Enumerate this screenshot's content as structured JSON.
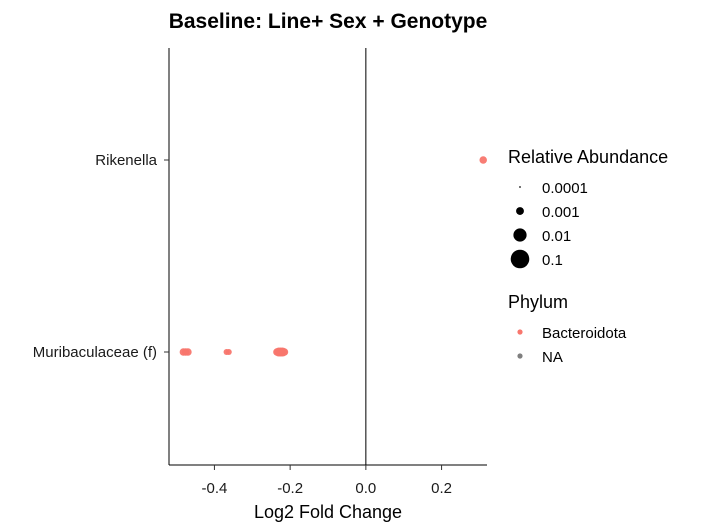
{
  "chart_data": {
    "type": "scatter",
    "title": "Baseline: Line+ Sex + Genotype",
    "xlabel": "Log2 Fold Change",
    "ylabel": "",
    "xlim": [
      -0.52,
      0.32
    ],
    "x_ticks": [
      -0.4,
      -0.2,
      0.0,
      0.2
    ],
    "x_tick_labels": [
      "-0.4",
      "-0.2",
      "0.0",
      "0.2"
    ],
    "categories": [
      "Muribaculaceae (f)",
      "Rikenella"
    ],
    "grid": false,
    "reference_line_x": 0,
    "points": [
      {
        "taxon": "Rikenella",
        "x": 0.31,
        "abundance": 0.001,
        "phylum": "Bacteroidota"
      },
      {
        "taxon": "Muribaculaceae (f)",
        "x": -0.482,
        "abundance": 0.001,
        "phylum": "Bacteroidota"
      },
      {
        "taxon": "Muribaculaceae (f)",
        "x": -0.476,
        "abundance": 0.001,
        "phylum": "Bacteroidota"
      },
      {
        "taxon": "Muribaculaceae (f)",
        "x": -0.47,
        "abundance": 0.001,
        "phylum": "Bacteroidota"
      },
      {
        "taxon": "Muribaculaceae (f)",
        "x": -0.368,
        "abundance": 0.0005,
        "phylum": "Bacteroidota"
      },
      {
        "taxon": "Muribaculaceae (f)",
        "x": -0.362,
        "abundance": 0.0005,
        "phylum": "Bacteroidota"
      },
      {
        "taxon": "Muribaculaceae (f)",
        "x": -0.235,
        "abundance": 0.001,
        "phylum": "Bacteroidota"
      },
      {
        "taxon": "Muribaculaceae (f)",
        "x": -0.23,
        "abundance": 0.002,
        "phylum": "Bacteroidota"
      },
      {
        "taxon": "Muribaculaceae (f)",
        "x": -0.225,
        "abundance": 0.002,
        "phylum": "Bacteroidota"
      },
      {
        "taxon": "Muribaculaceae (f)",
        "x": -0.22,
        "abundance": 0.002,
        "phylum": "Bacteroidota"
      },
      {
        "taxon": "Muribaculaceae (f)",
        "x": -0.215,
        "abundance": 0.001,
        "phylum": "Bacteroidota"
      }
    ],
    "legend": {
      "placement": "right",
      "size_title": "Relative Abundance",
      "size_items": [
        {
          "label": "0.0001",
          "value": 0.0001
        },
        {
          "label": "0.001",
          "value": 0.001
        },
        {
          "label": "0.01",
          "value": 0.01
        },
        {
          "label": "0.1",
          "value": 0.1
        }
      ],
      "color_title": "Phylum",
      "color_items": [
        {
          "label": "Bacteroidota",
          "color": "#F8766D"
        },
        {
          "label": "NA",
          "color": "#7F7F7F"
        }
      ]
    }
  }
}
